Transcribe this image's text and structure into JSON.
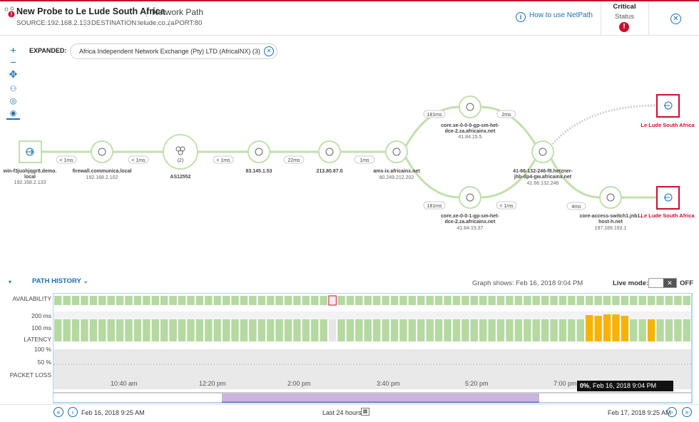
{
  "header": {
    "title": "New Probe to Le Lude South Africa",
    "subtitle": "Network Path",
    "source": "SOURCE:192.168.2.133",
    "destination": "DESTINATION:lelude.co.za",
    "port": "PORT:80",
    "help_link": "How to use NetPath",
    "status_value": "Critical",
    "status_label": "Status"
  },
  "toolbar": {
    "zoom_in": "+",
    "zoom_out": "−"
  },
  "expanded": {
    "label": "EXPANDED:",
    "chip": "Africa Independent Network Exchange (Pty) LTD (AfricaINX) (3)"
  },
  "network": {
    "nodes": [
      {
        "name": "win-f3juohjqgr8.demo.\nlocal",
        "ip": "192.168.2.133"
      },
      {
        "name": "firewall.communica.local",
        "ip": "192.168.2.102"
      },
      {
        "name": "AS12552",
        "ip": "",
        "count": "(2)"
      },
      {
        "name": "83.145.1.53",
        "ip": ""
      },
      {
        "name": "213.80.87.0",
        "ip": ""
      },
      {
        "name": "ams-ix.africainx.net",
        "ip": "80.249.212.202"
      },
      {
        "name": "core.xe-0-0-0-gp-sm-het-\ndce-2.za.africainx.net",
        "ip": "41.84.15.5"
      },
      {
        "name": "core.xe-0-0-1-gp-sm-het-\ndce-2.za.africainx.net",
        "ip": "41.84.15.37"
      },
      {
        "name": "41-66-132-246-f8.hetzner-\njhb-dp4-gw.africainx.net",
        "ip": "41.66.132.246"
      },
      {
        "name": "core-access-switch1.jnb1.\nhost-h.net",
        "ip": "197.189.193.1"
      }
    ],
    "destinations": [
      "Le Lude South Africa",
      "Le Lude South Africa"
    ],
    "latencies": [
      "< 1ms",
      "< 1ms",
      "< 1ms",
      "22ms",
      "1ms",
      "181ms",
      "181ms",
      "2ms",
      "< 1ms",
      "4ms"
    ]
  },
  "history": {
    "title": "PATH HISTORY",
    "graph_shows": "Graph shows: Feb 16, 2018 9:04 PM",
    "live_mode_label": "Live mode:",
    "live_mode_value": "OFF",
    "rows": {
      "availability": "AVAILABILITY",
      "l200": "200 ms",
      "l100": "100 ms",
      "latency": "LATENCY",
      "p100": "100 %",
      "p50": "50 %",
      "packet_loss": "PACKET LOSS"
    },
    "time_labels": [
      "10:40 am",
      "12:20 pm",
      "2:00 pm",
      "3:40 pm",
      "5:20 pm",
      "7:00 pm"
    ],
    "tooltip_value": "0%",
    "tooltip_date": ", Feb 16, 2018 9:04 PM"
  },
  "footer": {
    "start": "Feb 16, 2018 9:25 AM",
    "range": "Last 24 hours",
    "end": "Feb 17, 2018 9:25 AM"
  },
  "colors": {
    "good": "#b5d9a0",
    "warn": "#f5b400",
    "critical": "#c8102e",
    "accent": "#1a6fb1"
  }
}
